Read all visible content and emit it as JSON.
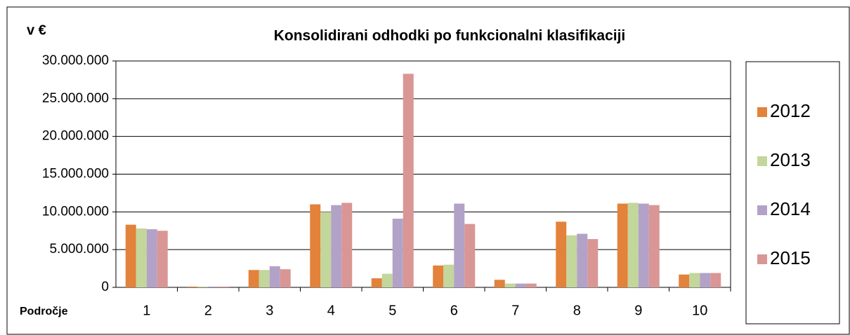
{
  "chart_data": {
    "type": "bar",
    "title": "Konsolidirani odhodki po funkcionalni klasifikaciji",
    "y_label": "v €",
    "x_label": "Področje",
    "categories": [
      "1",
      "2",
      "3",
      "4",
      "5",
      "6",
      "7",
      "8",
      "9",
      "10"
    ],
    "series": [
      {
        "name": "2012",
        "color": "#e3823a",
        "values": [
          8300000,
          100000,
          2300000,
          11000000,
          1200000,
          2900000,
          1000000,
          8700000,
          11100000,
          1700000
        ]
      },
      {
        "name": "2013",
        "color": "#c3d69b",
        "values": [
          7800000,
          100000,
          2300000,
          10000000,
          1800000,
          3000000,
          500000,
          6900000,
          11200000,
          1900000
        ]
      },
      {
        "name": "2014",
        "color": "#b3a2c7",
        "values": [
          7700000,
          100000,
          2800000,
          10900000,
          9100000,
          11100000,
          500000,
          7100000,
          11100000,
          1900000
        ]
      },
      {
        "name": "2015",
        "color": "#d99694",
        "values": [
          7500000,
          100000,
          2400000,
          11200000,
          28300000,
          8400000,
          500000,
          6400000,
          10900000,
          1900000
        ]
      }
    ],
    "ylim": [
      0,
      30000000
    ],
    "yticks": [
      {
        "value": 0,
        "label": "0"
      },
      {
        "value": 5000000,
        "label": "5.000.000"
      },
      {
        "value": 10000000,
        "label": "10.000.000"
      },
      {
        "value": 15000000,
        "label": "15.000.000"
      },
      {
        "value": 20000000,
        "label": "20.000.000"
      },
      {
        "value": 25000000,
        "label": "25.000.000"
      },
      {
        "value": 30000000,
        "label": "30.000.000"
      }
    ],
    "grid": true,
    "legend": "right"
  }
}
